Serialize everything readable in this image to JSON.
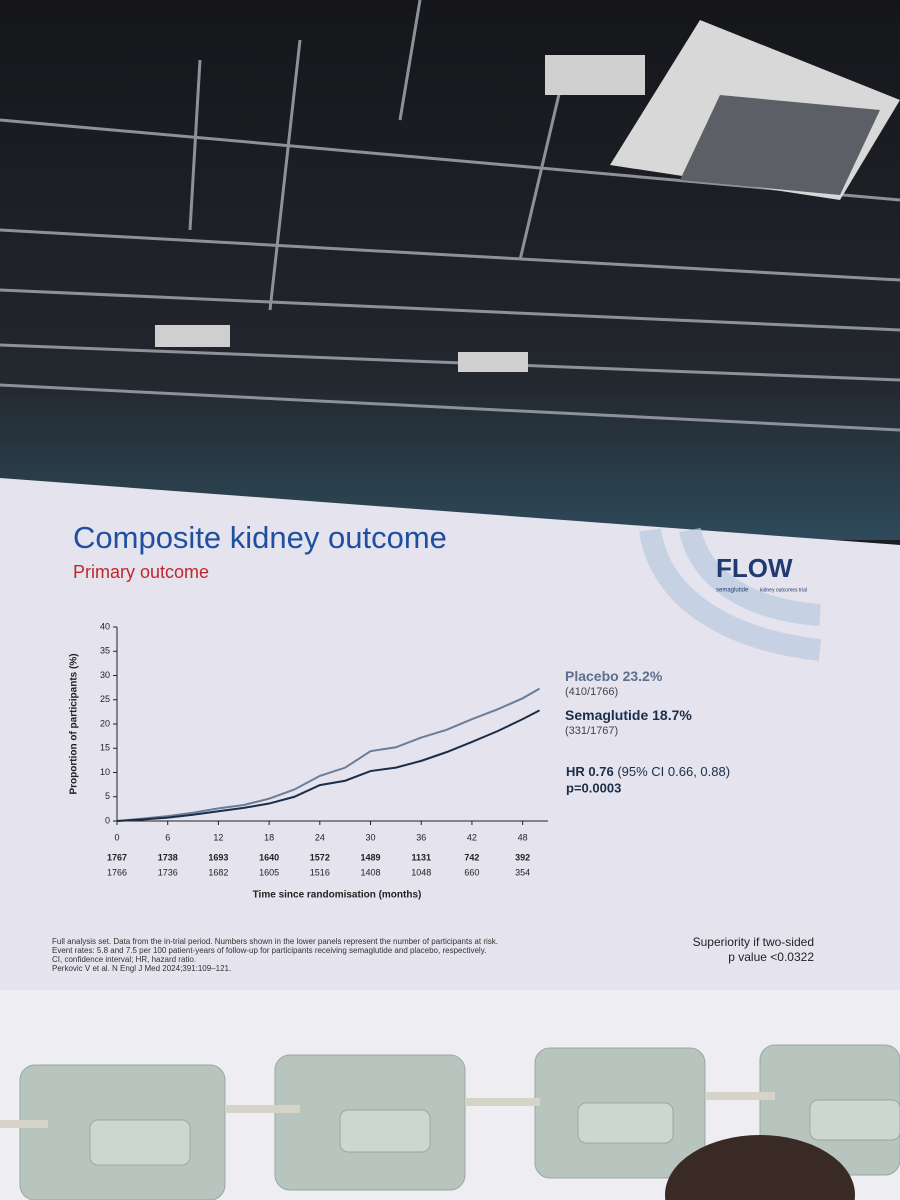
{
  "chart_data": {
    "type": "line",
    "title": "Composite kidney outcome",
    "subtitle": "Primary outcome",
    "y_label": "Proportion of participants (%)",
    "x_label": "Time since randomisation (months)",
    "x": [
      0,
      3,
      6,
      9,
      12,
      15,
      18,
      21,
      24,
      27,
      30,
      33,
      36,
      39,
      42,
      45,
      48,
      50
    ],
    "series": [
      {
        "name": "Placebo",
        "rate": "23.2%",
        "count": "(410/1766)",
        "color": "#6b7d99",
        "values": [
          0,
          0.5,
          1,
          1.7,
          2.6,
          3.3,
          4.6,
          6.5,
          9.3,
          11,
          14.4,
          15.2,
          17.2,
          18.8,
          21,
          23,
          25.3,
          27.3
        ]
      },
      {
        "name": "Semaglutide",
        "rate": "18.7%",
        "count": "(331/1767)",
        "color": "#1a2e4a",
        "values": [
          0,
          0.3,
          0.7,
          1.3,
          2,
          2.7,
          3.6,
          5,
          7.4,
          8.3,
          10.3,
          11,
          12.4,
          14.2,
          16.3,
          18.5,
          21,
          22.8
        ]
      }
    ],
    "xlim": [
      0,
      51
    ],
    "ylim": [
      0,
      40
    ],
    "xticks": [
      0,
      6,
      12,
      18,
      24,
      30,
      36,
      42,
      48
    ],
    "yticks": [
      0,
      5,
      10,
      15,
      20,
      25,
      30,
      35,
      40
    ],
    "at_risk": [
      [
        1767,
        1738,
        1693,
        1640,
        1572,
        1489,
        1131,
        742,
        392
      ],
      [
        1766,
        1736,
        1682,
        1605,
        1516,
        1408,
        1048,
        660,
        354
      ]
    ],
    "hr": "HR 0.76",
    "hr_ci": "(95% CI 0.66, 0.88)",
    "p_value": "p=0.0003"
  },
  "logo": {
    "title": "FLOW",
    "drug": "semaglutide",
    "trial": "kidney outcomes trial"
  },
  "footnotes": [
    "Full analysis set. Data from the in-trial period. Numbers shown in the lower panels represent the number of participants at risk.",
    "Event rates: 5.8 and 7.5 per 100 patient-years of follow-up for participants receiving semaglutide and placebo, respectively.",
    "CI, confidence interval; HR, hazard ratio.",
    "Perkovic V et al. N Engl J Med 2024;391:109–121."
  ],
  "superiority": [
    "Superiority if two-sided",
    "p value <0.0322"
  ]
}
